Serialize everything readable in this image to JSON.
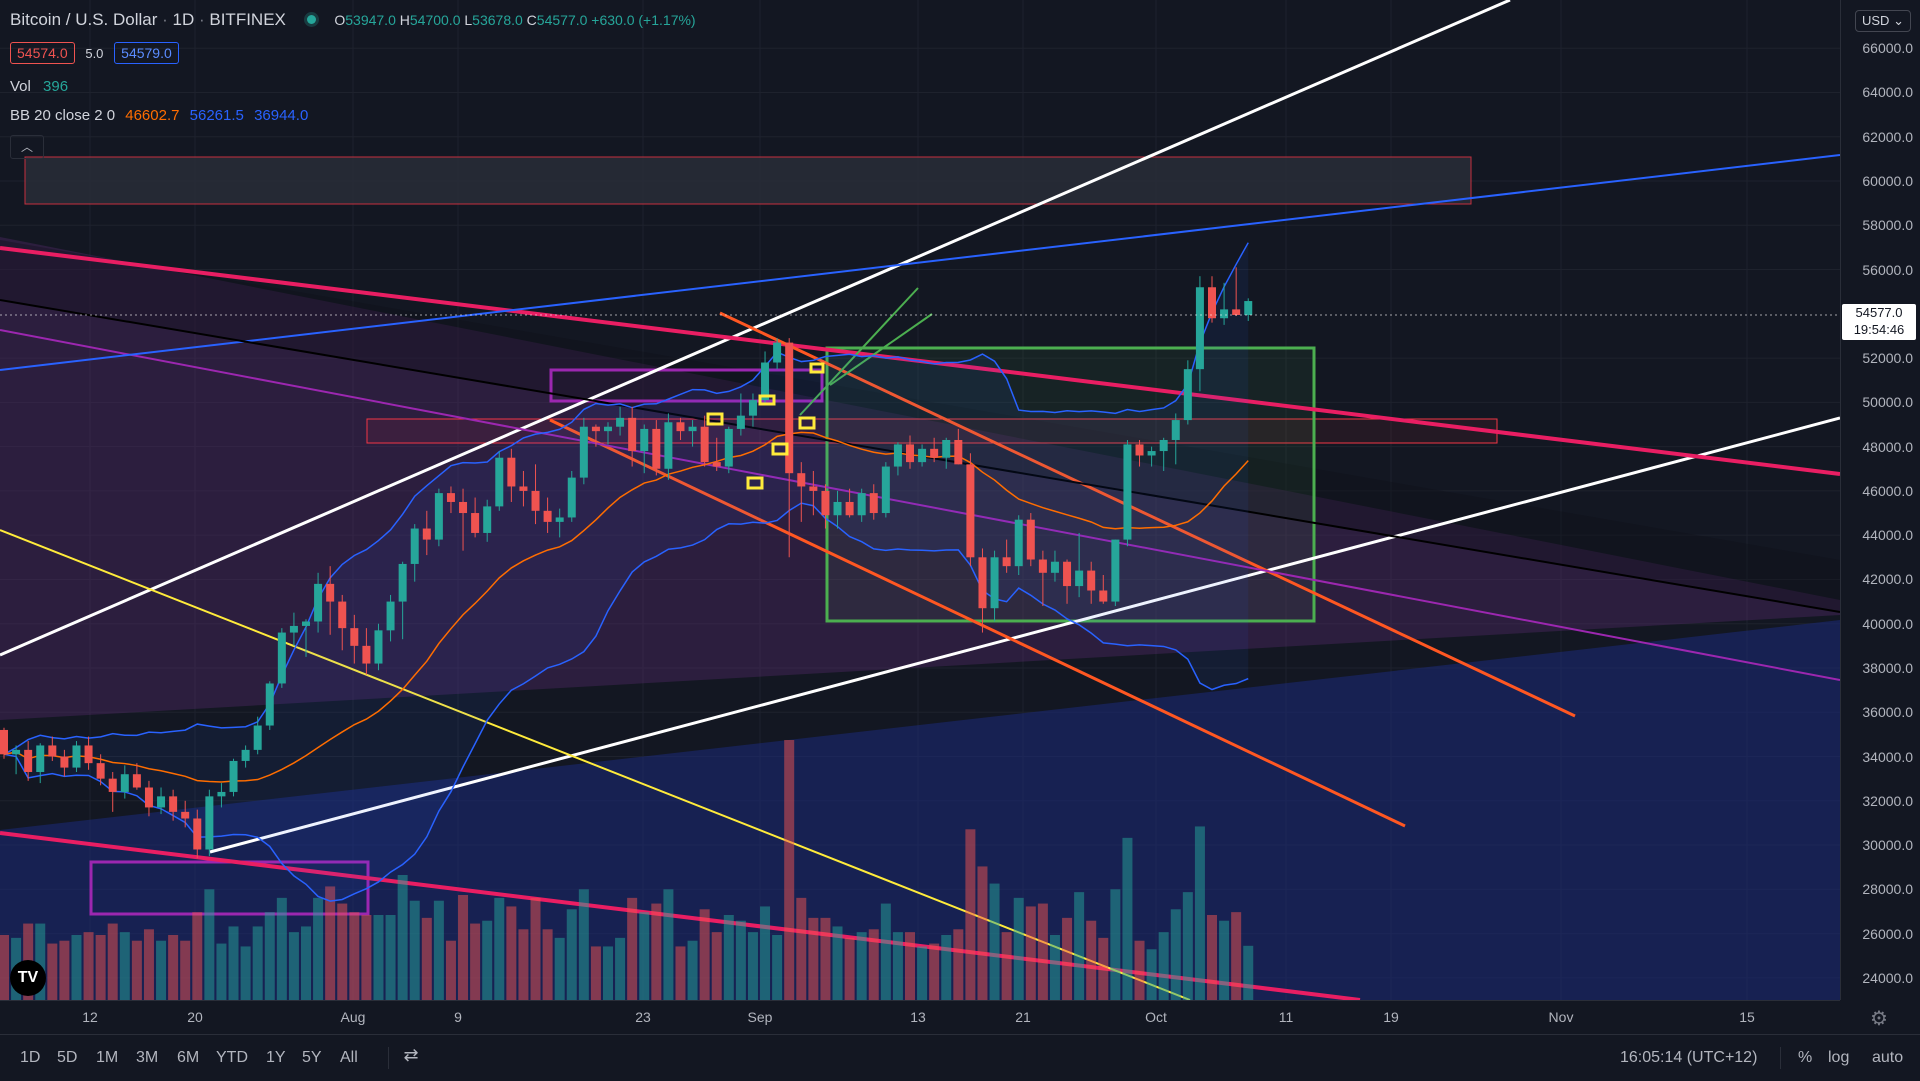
{
  "symbol": {
    "pair": "Bitcoin / U.S. Dollar",
    "interval": "1D",
    "exchange": "BITFINEX",
    "open_label": "O",
    "open": "53947.0",
    "high_label": "H",
    "high": "54700.0",
    "low_label": "L",
    "low": "53678.0",
    "close_label": "C",
    "close": "54577.0",
    "change": "+630.0 (+1.17%)"
  },
  "order": {
    "sell": "54574.0",
    "spread": "5.0",
    "buy": "54579.0"
  },
  "volume": {
    "label": "Vol",
    "value": "396"
  },
  "bb": {
    "label": "BB 20 close 2 0",
    "basis": "46602.7",
    "upper": "56261.5",
    "lower": "36944.0"
  },
  "currency": "USD",
  "last_price": {
    "value": "54577.0",
    "countdown": "19:54:46"
  },
  "price_ticks": [
    "66000.0",
    "64000.0",
    "62000.0",
    "60000.0",
    "58000.0",
    "56000.0",
    "52000.0",
    "50000.0",
    "48000.0",
    "46000.0",
    "44000.0",
    "42000.0",
    "40000.0",
    "38000.0",
    "36000.0",
    "34000.0",
    "32000.0",
    "30000.0",
    "28000.0",
    "26000.0",
    "24000.0"
  ],
  "time_ticks": [
    "12",
    "20",
    "Aug",
    "9",
    "23",
    "Sep",
    "13",
    "21",
    "Oct",
    "11",
    "19",
    "Nov",
    "15"
  ],
  "ranges": [
    "1D",
    "5D",
    "1M",
    "3M",
    "6M",
    "YTD",
    "1Y",
    "5Y",
    "All"
  ],
  "clock": "16:05:14 (UTC+12)",
  "scale_options": [
    "%",
    "log",
    "auto"
  ],
  "colors": {
    "up": "#26a69a",
    "down": "#ef5350",
    "bg": "#131722",
    "bb": "#2962ff",
    "bb_basis": "#ff6d00"
  },
  "chart_data": {
    "type": "candlestick",
    "y_range": [
      23000,
      67500
    ],
    "price_unit": "USD",
    "notes": "approximate daily OHLC read from screenshot",
    "candles": [
      {
        "o": 35200,
        "h": 35300,
        "l": 33900,
        "c": 34100
      },
      {
        "o": 34100,
        "h": 34500,
        "l": 33200,
        "c": 34300
      },
      {
        "o": 34300,
        "h": 34700,
        "l": 32900,
        "c": 33300
      },
      {
        "o": 33300,
        "h": 34600,
        "l": 32800,
        "c": 34500
      },
      {
        "o": 34500,
        "h": 34900,
        "l": 33800,
        "c": 34000
      },
      {
        "o": 34000,
        "h": 34300,
        "l": 33100,
        "c": 33500
      },
      {
        "o": 33500,
        "h": 34700,
        "l": 33300,
        "c": 34500
      },
      {
        "o": 34500,
        "h": 34900,
        "l": 33400,
        "c": 33700
      },
      {
        "o": 33700,
        "h": 34100,
        "l": 32700,
        "c": 33000
      },
      {
        "o": 33000,
        "h": 33300,
        "l": 31500,
        "c": 32400
      },
      {
        "o": 32400,
        "h": 33600,
        "l": 32100,
        "c": 33200
      },
      {
        "o": 33200,
        "h": 33700,
        "l": 32500,
        "c": 32600
      },
      {
        "o": 32600,
        "h": 32900,
        "l": 31300,
        "c": 31700
      },
      {
        "o": 31700,
        "h": 32600,
        "l": 31400,
        "c": 32200
      },
      {
        "o": 32200,
        "h": 32500,
        "l": 31100,
        "c": 31500
      },
      {
        "o": 31500,
        "h": 32000,
        "l": 30800,
        "c": 31200
      },
      {
        "o": 31200,
        "h": 31600,
        "l": 29400,
        "c": 29800
      },
      {
        "o": 29800,
        "h": 32500,
        "l": 29500,
        "c": 32200
      },
      {
        "o": 32200,
        "h": 32800,
        "l": 31700,
        "c": 32400
      },
      {
        "o": 32400,
        "h": 33900,
        "l": 32200,
        "c": 33800
      },
      {
        "o": 33800,
        "h": 34500,
        "l": 33500,
        "c": 34300
      },
      {
        "o": 34300,
        "h": 35800,
        "l": 34100,
        "c": 35400
      },
      {
        "o": 35400,
        "h": 37400,
        "l": 35200,
        "c": 37300
      },
      {
        "o": 37300,
        "h": 39800,
        "l": 37100,
        "c": 39600
      },
      {
        "o": 39600,
        "h": 40500,
        "l": 39000,
        "c": 39900
      },
      {
        "o": 39900,
        "h": 40200,
        "l": 38500,
        "c": 40100
      },
      {
        "o": 40100,
        "h": 42300,
        "l": 39600,
        "c": 41800
      },
      {
        "o": 41800,
        "h": 42600,
        "l": 39500,
        "c": 41000
      },
      {
        "o": 41000,
        "h": 41300,
        "l": 38800,
        "c": 39800
      },
      {
        "o": 39800,
        "h": 40400,
        "l": 38200,
        "c": 39000
      },
      {
        "o": 39000,
        "h": 39800,
        "l": 37700,
        "c": 38200
      },
      {
        "o": 38200,
        "h": 40000,
        "l": 37900,
        "c": 39700
      },
      {
        "o": 39700,
        "h": 41300,
        "l": 39200,
        "c": 41000
      },
      {
        "o": 41000,
        "h": 42800,
        "l": 39300,
        "c": 42700
      },
      {
        "o": 42700,
        "h": 44500,
        "l": 41900,
        "c": 44300
      },
      {
        "o": 44300,
        "h": 45100,
        "l": 43100,
        "c": 43800
      },
      {
        "o": 43800,
        "h": 46100,
        "l": 43500,
        "c": 45900
      },
      {
        "o": 45900,
        "h": 46200,
        "l": 45000,
        "c": 45500
      },
      {
        "o": 45500,
        "h": 46100,
        "l": 43300,
        "c": 45000
      },
      {
        "o": 45000,
        "h": 45700,
        "l": 43900,
        "c": 44100
      },
      {
        "o": 44100,
        "h": 45600,
        "l": 43700,
        "c": 45300
      },
      {
        "o": 45300,
        "h": 47800,
        "l": 45100,
        "c": 47500
      },
      {
        "o": 47500,
        "h": 47900,
        "l": 45500,
        "c": 46200
      },
      {
        "o": 46200,
        "h": 46900,
        "l": 45300,
        "c": 46000
      },
      {
        "o": 46000,
        "h": 47200,
        "l": 44500,
        "c": 45100
      },
      {
        "o": 45100,
        "h": 45700,
        "l": 44100,
        "c": 44600
      },
      {
        "o": 44600,
        "h": 45200,
        "l": 43900,
        "c": 44800
      },
      {
        "o": 44800,
        "h": 46900,
        "l": 44600,
        "c": 46600
      },
      {
        "o": 46600,
        "h": 49300,
        "l": 46300,
        "c": 48900
      },
      {
        "o": 48900,
        "h": 49000,
        "l": 48000,
        "c": 48700
      },
      {
        "o": 48700,
        "h": 49100,
        "l": 48100,
        "c": 48900
      },
      {
        "o": 48900,
        "h": 49800,
        "l": 48500,
        "c": 49300
      },
      {
        "o": 49300,
        "h": 49800,
        "l": 47100,
        "c": 47800
      },
      {
        "o": 47800,
        "h": 49000,
        "l": 46800,
        "c": 48800
      },
      {
        "o": 48800,
        "h": 49200,
        "l": 46700,
        "c": 47000
      },
      {
        "o": 47000,
        "h": 49500,
        "l": 46500,
        "c": 49100
      },
      {
        "o": 49100,
        "h": 49300,
        "l": 48300,
        "c": 48700
      },
      {
        "o": 48700,
        "h": 49200,
        "l": 48000,
        "c": 48900
      },
      {
        "o": 48900,
        "h": 49400,
        "l": 47100,
        "c": 47300
      },
      {
        "o": 47300,
        "h": 48400,
        "l": 46900,
        "c": 47100
      },
      {
        "o": 47100,
        "h": 48900,
        "l": 46800,
        "c": 48800
      },
      {
        "o": 48800,
        "h": 50400,
        "l": 48500,
        "c": 49400
      },
      {
        "o": 49400,
        "h": 50400,
        "l": 48900,
        "c": 50100
      },
      {
        "o": 50100,
        "h": 52300,
        "l": 49900,
        "c": 51800
      },
      {
        "o": 51800,
        "h": 52900,
        "l": 51500,
        "c": 52700
      },
      {
        "o": 52700,
        "h": 52900,
        "l": 43000,
        "c": 46800
      },
      {
        "o": 46800,
        "h": 47300,
        "l": 44600,
        "c": 46200
      },
      {
        "o": 46200,
        "h": 46900,
        "l": 44900,
        "c": 46000
      },
      {
        "o": 46000,
        "h": 46300,
        "l": 44300,
        "c": 44900
      },
      {
        "o": 44900,
        "h": 46000,
        "l": 44300,
        "c": 45500
      },
      {
        "o": 45500,
        "h": 46100,
        "l": 44800,
        "c": 44900
      },
      {
        "o": 44900,
        "h": 46100,
        "l": 44600,
        "c": 45900
      },
      {
        "o": 45900,
        "h": 46300,
        "l": 44700,
        "c": 45000
      },
      {
        "o": 45000,
        "h": 47300,
        "l": 44800,
        "c": 47100
      },
      {
        "o": 47100,
        "h": 48200,
        "l": 46700,
        "c": 48100
      },
      {
        "o": 48100,
        "h": 48500,
        "l": 47000,
        "c": 47300
      },
      {
        "o": 47300,
        "h": 48100,
        "l": 47100,
        "c": 47900
      },
      {
        "o": 47900,
        "h": 48400,
        "l": 47300,
        "c": 47500
      },
      {
        "o": 47500,
        "h": 48400,
        "l": 47000,
        "c": 48300
      },
      {
        "o": 48300,
        "h": 48800,
        "l": 47200,
        "c": 47200
      },
      {
        "o": 47200,
        "h": 47700,
        "l": 42600,
        "c": 43000
      },
      {
        "o": 43000,
        "h": 43400,
        "l": 39600,
        "c": 40700
      },
      {
        "o": 40700,
        "h": 43300,
        "l": 40100,
        "c": 43000
      },
      {
        "o": 43000,
        "h": 43800,
        "l": 42300,
        "c": 42600
      },
      {
        "o": 42600,
        "h": 44900,
        "l": 42200,
        "c": 44700
      },
      {
        "o": 44700,
        "h": 45000,
        "l": 42600,
        "c": 42900
      },
      {
        "o": 42900,
        "h": 43300,
        "l": 40800,
        "c": 42300
      },
      {
        "o": 42300,
        "h": 43300,
        "l": 41900,
        "c": 42800
      },
      {
        "o": 42800,
        "h": 42900,
        "l": 40900,
        "c": 41700
      },
      {
        "o": 41700,
        "h": 44100,
        "l": 41200,
        "c": 42400
      },
      {
        "o": 42400,
        "h": 42800,
        "l": 40900,
        "c": 41500
      },
      {
        "o": 41500,
        "h": 42200,
        "l": 40900,
        "c": 41000
      },
      {
        "o": 41000,
        "h": 43800,
        "l": 40800,
        "c": 43800
      },
      {
        "o": 43800,
        "h": 48300,
        "l": 43500,
        "c": 48100
      },
      {
        "o": 48100,
        "h": 48300,
        "l": 47100,
        "c": 47600
      },
      {
        "o": 47600,
        "h": 48000,
        "l": 47100,
        "c": 47800
      },
      {
        "o": 47800,
        "h": 48400,
        "l": 46900,
        "c": 48300
      },
      {
        "o": 48300,
        "h": 49500,
        "l": 47200,
        "c": 49200
      },
      {
        "o": 49200,
        "h": 51900,
        "l": 49000,
        "c": 51500
      },
      {
        "o": 51500,
        "h": 55700,
        "l": 50500,
        "c": 55200
      },
      {
        "o": 55200,
        "h": 55700,
        "l": 53600,
        "c": 53800
      },
      {
        "o": 53800,
        "h": 55400,
        "l": 53500,
        "c": 54200
      },
      {
        "o": 54200,
        "h": 56100,
        "l": 53900,
        "c": 53947
      },
      {
        "o": 53947,
        "h": 54700,
        "l": 53678,
        "c": 54577
      }
    ]
  }
}
